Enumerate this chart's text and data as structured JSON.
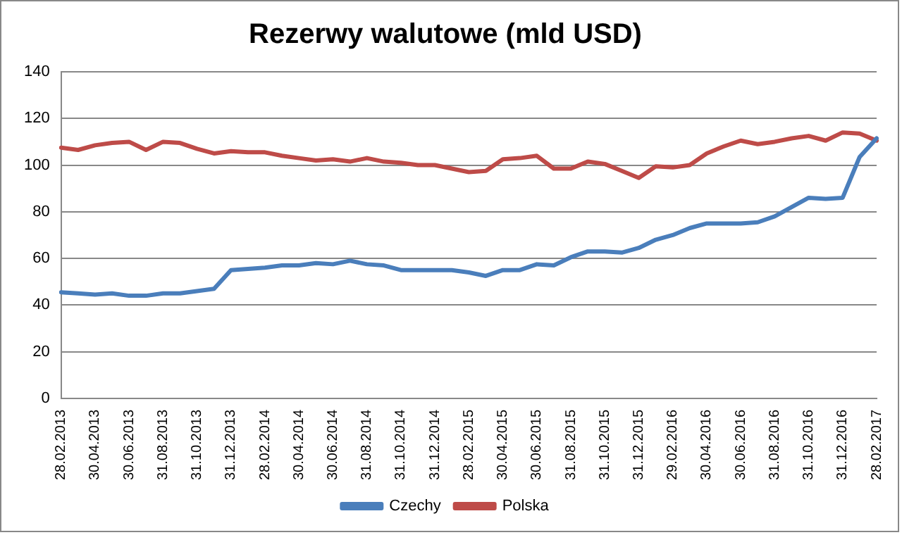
{
  "chart_data": {
    "type": "line",
    "title": "Rezerwy walutowe (mld USD)",
    "categories": [
      "28.02.2013",
      null,
      "30.04.2013",
      null,
      "30.06.2013",
      null,
      "31.08.2013",
      null,
      "31.10.2013",
      null,
      "31.12.2013",
      null,
      "28.02.2014",
      null,
      "30.04.2014",
      null,
      "30.06.2014",
      null,
      "31.08.2014",
      null,
      "31.10.2014",
      null,
      "31.12.2014",
      null,
      "28.02.2015",
      null,
      "30.04.2015",
      null,
      "30.06.2015",
      null,
      "31.08.2015",
      null,
      "31.10.2015",
      null,
      "31.12.2015",
      null,
      "29.02.2016",
      null,
      "30.04.2016",
      null,
      "30.06.2016",
      null,
      "31.08.2016",
      null,
      "31.10.2016",
      null,
      "31.12.2016",
      null,
      "28.02.2017"
    ],
    "series": [
      {
        "name": "Czechy",
        "color": "#4a7ebb",
        "values": [
          45.5,
          45,
          44.5,
          45,
          44,
          44,
          45,
          45,
          46,
          47,
          55,
          55.5,
          56,
          57,
          57,
          58,
          57.5,
          59,
          57.5,
          57,
          55,
          55,
          55,
          55,
          54,
          52.5,
          55,
          55,
          57.5,
          57,
          60.5,
          63,
          63,
          62.5,
          64.5,
          68,
          70,
          73,
          75,
          75,
          75,
          75.5,
          78,
          82,
          86,
          85.5,
          86,
          103.5,
          111.5
        ]
      },
      {
        "name": "Polska",
        "color": "#be4b48",
        "values": [
          107.5,
          106.5,
          108.5,
          109.5,
          110,
          106.5,
          110,
          109.5,
          107,
          105,
          106,
          105.5,
          105.5,
          104,
          103,
          102,
          102.5,
          101.5,
          103,
          101.5,
          101,
          100,
          100,
          98.5,
          97,
          97.5,
          102.5,
          103,
          104,
          98.5,
          98.5,
          101.5,
          100.5,
          97.5,
          94.5,
          99.5,
          99,
          100,
          105,
          108,
          110.5,
          109,
          110,
          111.5,
          112.5,
          110.5,
          114,
          113.5,
          110.5
        ]
      }
    ],
    "ylim": [
      0,
      140
    ],
    "yticks": [
      0,
      20,
      40,
      60,
      80,
      100,
      120,
      140
    ],
    "grid": "y",
    "legend": "bottom",
    "marker": "none",
    "line_style": "solid"
  }
}
